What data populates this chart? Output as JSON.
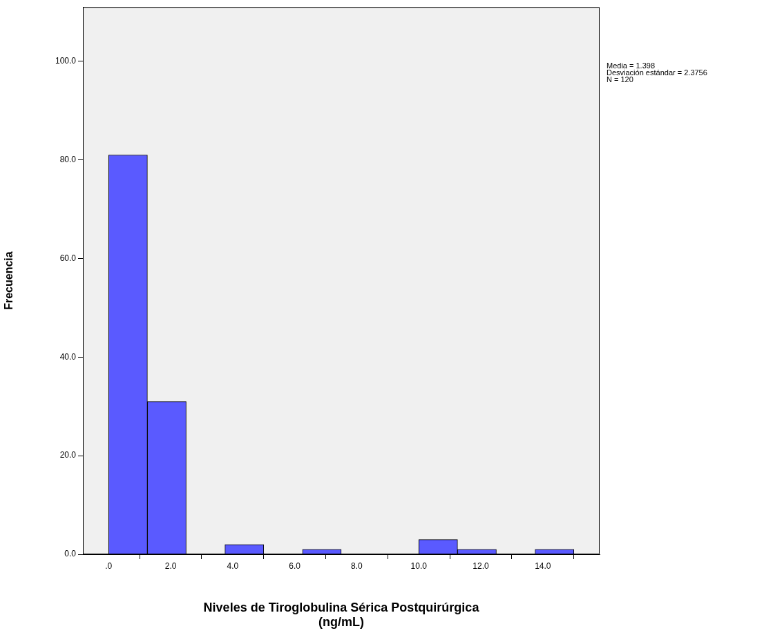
{
  "chart_data": {
    "type": "histogram",
    "xlabel": "Niveles de Tiroglobulina Sérica Postquirúrgica\n(ng/mL)",
    "ylabel": "Frecuencia",
    "bins": [
      0,
      1.25,
      2.5,
      3.75,
      5,
      6.25,
      7.5,
      8.75,
      10,
      11.25,
      12.5,
      13.75,
      15
    ],
    "values": [
      81,
      31,
      0,
      2,
      0,
      1,
      0,
      0,
      3,
      1,
      0,
      1
    ],
    "color": "#5a5aff",
    "xlim": [
      -0.83,
      15.83
    ],
    "xticks": [
      {
        "value": 0,
        "label": ".0"
      },
      {
        "value": 2,
        "label": "2.0"
      },
      {
        "value": 4,
        "label": "4.0"
      },
      {
        "value": 6,
        "label": "6.0"
      },
      {
        "value": 8,
        "label": "8.0"
      },
      {
        "value": 10,
        "label": "10.0"
      },
      {
        "value": 12,
        "label": "12.0"
      },
      {
        "value": 14,
        "label": "14.0"
      }
    ],
    "ylim": [
      0,
      111
    ],
    "yticks": [
      {
        "value": 0,
        "label": "0.0"
      },
      {
        "value": 20,
        "label": "20.0"
      },
      {
        "value": 40,
        "label": "40.0"
      },
      {
        "value": 60,
        "label": "60.0"
      },
      {
        "value": 80,
        "label": "80.0"
      },
      {
        "value": 100,
        "label": "100.0"
      }
    ],
    "annotations": [
      "Media = 1.398",
      "Desviación estándar = 2.3756",
      "N = 120"
    ],
    "grid": false,
    "legend": false
  }
}
